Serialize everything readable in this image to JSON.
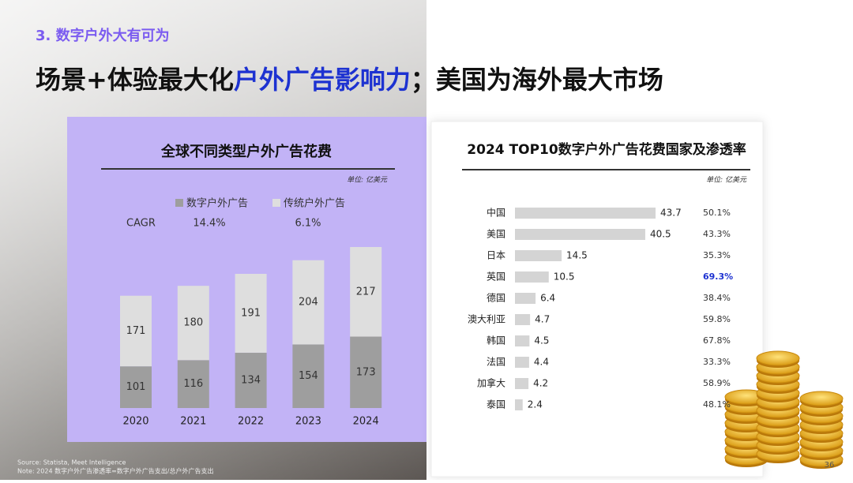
{
  "section": "3. 数字户外大有可为",
  "title": [
    "场景+体验最大化",
    "户外广告影响力",
    "；美国为海外最大市场"
  ],
  "source": "Source: Statista, Meet Intelligence",
  "note": "Note: 2024 数字户外广告渗透率=数字户外广告支出/总户外广告支出",
  "page_number": "36",
  "chart_data": [
    {
      "type": "stacked_bar",
      "title": "全球不同类型户外广告花费",
      "unit": "单位: 亿美元",
      "categories": [
        "2020",
        "2021",
        "2022",
        "2023",
        "2024"
      ],
      "series": [
        {
          "name": "数字户外广告",
          "color": "#9e9e9e",
          "values": [
            101,
            116,
            134,
            154,
            173
          ],
          "cagr": "14.4%"
        },
        {
          "name": "传统户外广告",
          "color": "#dedede",
          "values": [
            171,
            180,
            191,
            204,
            217
          ],
          "cagr": "6.1%"
        }
      ],
      "cagr_label": "CAGR"
    },
    {
      "type": "hbar",
      "title": "2024 TOP10数字户外广告花费国家及渗透率",
      "unit": "单位: 亿美元",
      "categories": [
        "中国",
        "美国",
        "日本",
        "英国",
        "德国",
        "澳大利亚",
        "韩国",
        "法国",
        "加拿大",
        "泰国"
      ],
      "values": [
        43.7,
        40.5,
        14.5,
        10.5,
        6.4,
        4.7,
        4.5,
        4.4,
        4.2,
        2.4
      ],
      "color": "#d4d4d4",
      "penetration": {
        "values": [
          50.1,
          43.3,
          35.3,
          69.3,
          38.4,
          59.8,
          67.8,
          33.3,
          58.9,
          48.1
        ],
        "value_labels": [
          "50.1%",
          "43.3%",
          "35.3%",
          "69.3%",
          "38.4%",
          "59.8%",
          "67.8%",
          "33.3%",
          "58.9%",
          "48.1%"
        ],
        "highlight": {
          "index": 3,
          "color": "#1d32d1"
        }
      }
    }
  ]
}
